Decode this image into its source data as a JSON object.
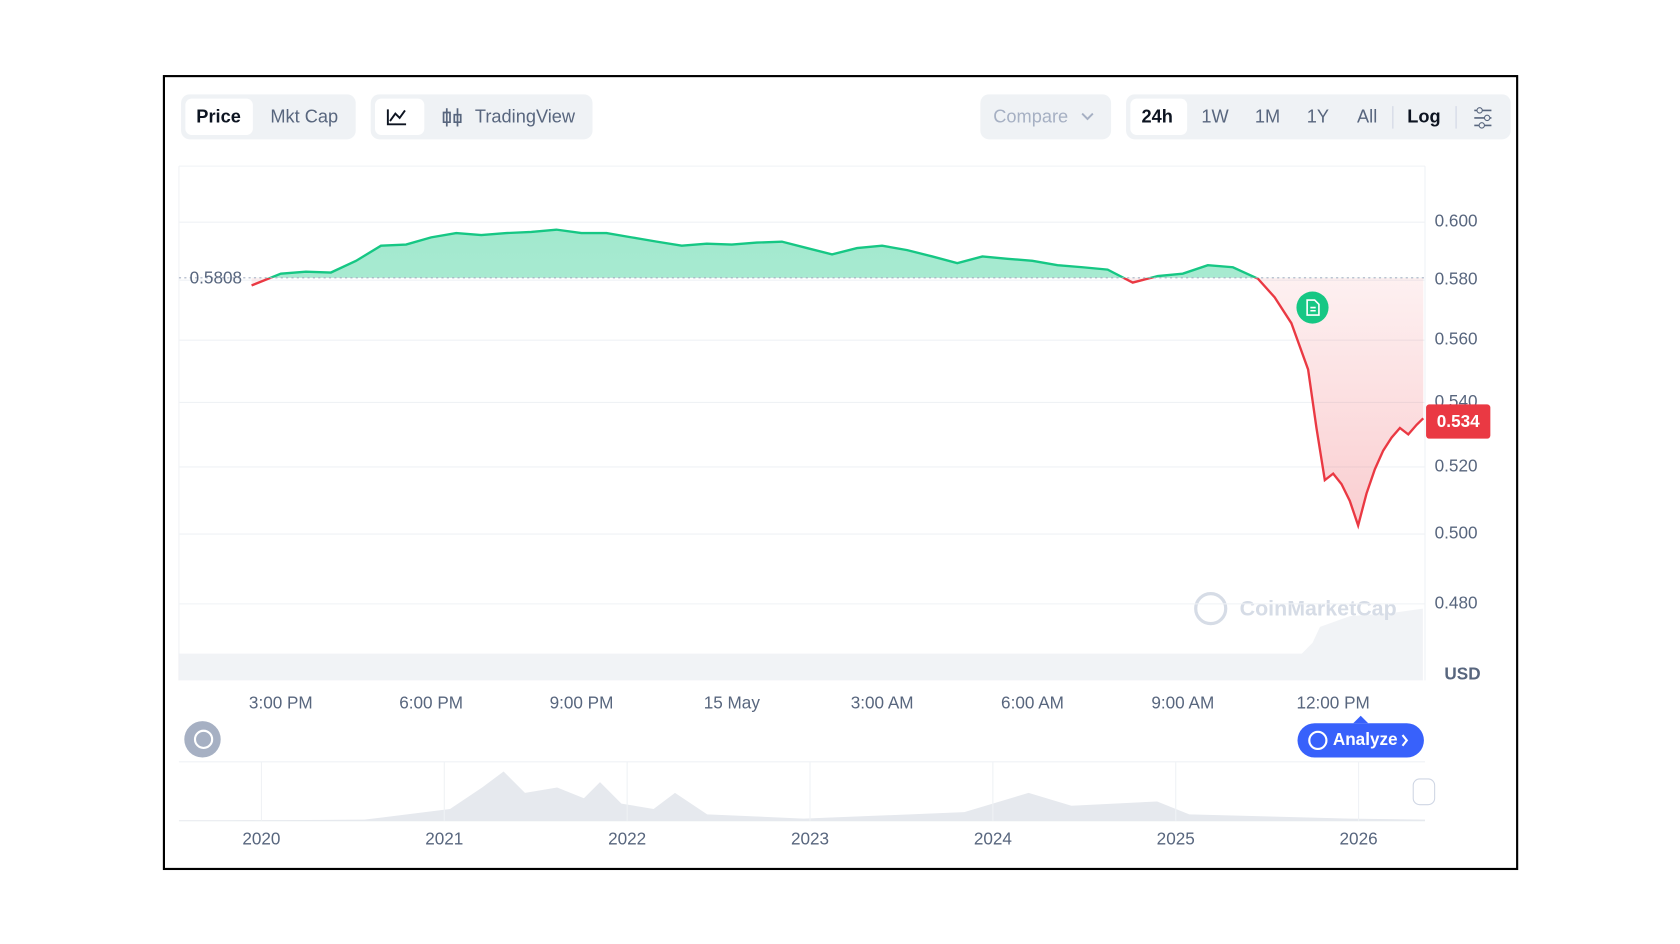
{
  "toolbar": {
    "metric": [
      "Price",
      "Mkt Cap"
    ],
    "view": "TradingView",
    "compare": "Compare",
    "ranges": [
      "24h",
      "1W",
      "1M",
      "1Y",
      "All"
    ],
    "log": "Log"
  },
  "chart_data": {
    "type": "line",
    "x": [
      "14 May 14:25",
      "14 May 14:30",
      "14 May 15:00",
      "14 May 15:30",
      "14 May 16:00",
      "14 May 16:30",
      "14 May 17:00",
      "14 May 17:30",
      "14 May 18:00",
      "14 May 18:30",
      "14 May 19:00",
      "14 May 19:30",
      "14 May 20:00",
      "14 May 20:30",
      "14 May 21:00",
      "14 May 21:30",
      "14 May 22:00",
      "14 May 22:30",
      "14 May 23:00",
      "14 May 23:30",
      "15 May 00:00",
      "15 May 00:30",
      "15 May 01:00",
      "15 May 01:30",
      "15 May 02:00",
      "15 May 02:30",
      "15 May 03:00",
      "15 May 03:30",
      "15 May 04:00",
      "15 May 04:30",
      "15 May 05:00",
      "15 May 05:30",
      "15 May 06:00",
      "15 May 06:30",
      "15 May 07:00",
      "15 May 07:30",
      "15 May 08:00",
      "15 May 08:30",
      "15 May 09:00",
      "15 May 09:30",
      "15 May 10:00",
      "15 May 10:30",
      "15 May 10:50",
      "15 May 11:10",
      "15 May 11:30",
      "15 May 11:40",
      "15 May 11:50",
      "15 May 12:00",
      "15 May 12:10",
      "15 May 12:20",
      "15 May 12:30",
      "15 May 12:40",
      "15 May 12:50",
      "15 May 13:00",
      "15 May 13:10",
      "15 May 13:20",
      "15 May 13:30",
      "15 May 13:40",
      "15 May 13:48"
    ],
    "series": [
      {
        "name": "Price",
        "color": "#16c784",
        "down_color": "#ea3943",
        "values": [
          0.5782,
          0.5788,
          0.5822,
          0.5829,
          0.5826,
          0.5866,
          0.5918,
          0.5922,
          0.5947,
          0.5962,
          0.5955,
          0.5962,
          0.5966,
          0.5974,
          0.5962,
          0.5962,
          0.5947,
          0.5932,
          0.5918,
          0.5925,
          0.5922,
          0.5929,
          0.5932,
          0.591,
          0.5888,
          0.591,
          0.5918,
          0.5903,
          0.5881,
          0.5858,
          0.5881,
          0.5873,
          0.5866,
          0.5851,
          0.5844,
          0.5836,
          0.5792,
          0.5814,
          0.5822,
          0.5851,
          0.5844,
          0.5805,
          0.5742,
          0.5656,
          0.5505,
          0.532,
          0.516,
          0.518,
          0.5148,
          0.5098,
          0.5025,
          0.512,
          0.5193,
          0.525,
          0.529,
          0.532,
          0.53,
          0.533,
          0.535
        ]
      }
    ],
    "reference": 0.5808,
    "current_value": 0.534,
    "xlim": [
      "14 May 12:58",
      "15 May 13:50"
    ],
    "xticks": [
      {
        "value": "14 May 15:00",
        "label": "3:00 PM"
      },
      {
        "value": "14 May 18:00",
        "label": "6:00 PM"
      },
      {
        "value": "14 May 21:00",
        "label": "9:00 PM"
      },
      {
        "value": "15 May 00:00",
        "label": "15 May"
      },
      {
        "value": "15 May 03:00",
        "label": "3:00 AM"
      },
      {
        "value": "15 May 06:00",
        "label": "6:00 AM"
      },
      {
        "value": "15 May 09:00",
        "label": "9:00 AM"
      },
      {
        "value": "15 May 12:00",
        "label": "12:00 PM"
      }
    ],
    "ylim": [
      0.459,
      0.62
    ],
    "yticks": [
      {
        "value": 0.48,
        "label": "0.480"
      },
      {
        "value": 0.5,
        "label": "0.500"
      },
      {
        "value": 0.52,
        "label": "0.520"
      },
      {
        "value": 0.54,
        "label": "0.540"
      },
      {
        "value": 0.56,
        "label": "0.560"
      },
      {
        "value": 0.58,
        "label": "0.580"
      },
      {
        "value": 0.6,
        "label": "0.600"
      }
    ],
    "y_unit": "USD",
    "log_scale": true,
    "grid": true,
    "watermark": "CoinMarketCap"
  },
  "analyze": "Analyze",
  "navigator": {
    "years": [
      "2020",
      "2021",
      "2022",
      "2023",
      "2024",
      "2025",
      "2026"
    ]
  }
}
